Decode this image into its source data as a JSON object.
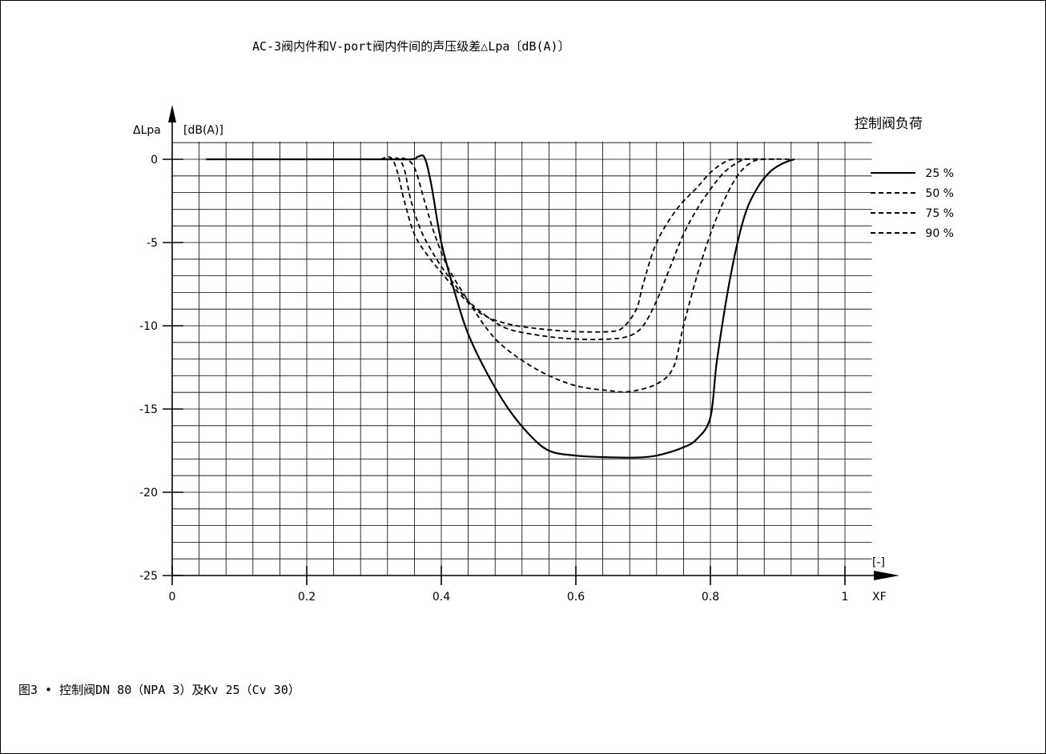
{
  "chart_data": {
    "type": "line",
    "title": "AC-3阀内件和V-port阀内件间的声压级差△Lpa〔dB(A)〕",
    "caption": "图3 • 控制阀DN 80（NPA 3）及Kv 25（Cv 30）",
    "ylabel": "ΔLpa",
    "yunit": "[dB(A)]",
    "xunit": "[-]",
    "xlabel": "XF",
    "xlim": [
      0,
      1
    ],
    "ylim": [
      -25,
      0
    ],
    "x_ticks": [
      "0",
      "0.2",
      "0.4",
      "0.6",
      "0.8",
      "1"
    ],
    "y_ticks": [
      "0",
      "-5",
      "-10",
      "-15",
      "-20",
      "-25"
    ],
    "grid": true,
    "legend_title": "控制阀负荷",
    "legend_position": "top-right",
    "series": [
      {
        "name": "25 %",
        "style": "solid",
        "points": [
          [
            0.05,
            0
          ],
          [
            0.3,
            0
          ],
          [
            0.355,
            0
          ],
          [
            0.365,
            0.15
          ],
          [
            0.375,
            0.1
          ],
          [
            0.385,
            -1.5
          ],
          [
            0.4,
            -5.0
          ],
          [
            0.42,
            -8.0
          ],
          [
            0.44,
            -10.5
          ],
          [
            0.47,
            -13
          ],
          [
            0.5,
            -15
          ],
          [
            0.53,
            -16.5
          ],
          [
            0.56,
            -17.5
          ],
          [
            0.6,
            -17.8
          ],
          [
            0.65,
            -17.9
          ],
          [
            0.7,
            -17.9
          ],
          [
            0.73,
            -17.7
          ],
          [
            0.76,
            -17.3
          ],
          [
            0.78,
            -16.8
          ],
          [
            0.8,
            -15.5
          ],
          [
            0.81,
            -12
          ],
          [
            0.83,
            -7
          ],
          [
            0.85,
            -3.5
          ],
          [
            0.87,
            -1.7
          ],
          [
            0.89,
            -0.7
          ],
          [
            0.91,
            -0.2
          ],
          [
            0.925,
            0
          ]
        ]
      },
      {
        "name": "50 %",
        "style": "dashed",
        "points": [
          [
            0.33,
            0
          ],
          [
            0.345,
            0.05
          ],
          [
            0.36,
            -0.5
          ],
          [
            0.375,
            -2.5
          ],
          [
            0.39,
            -4.5
          ],
          [
            0.41,
            -6.5
          ],
          [
            0.44,
            -8.5
          ],
          [
            0.47,
            -10.3
          ],
          [
            0.5,
            -11.5
          ],
          [
            0.55,
            -12.8
          ],
          [
            0.6,
            -13.6
          ],
          [
            0.65,
            -13.9
          ],
          [
            0.68,
            -13.95
          ],
          [
            0.72,
            -13.5
          ],
          [
            0.745,
            -12.5
          ],
          [
            0.76,
            -10
          ],
          [
            0.78,
            -7
          ],
          [
            0.8,
            -4.5
          ],
          [
            0.82,
            -2.5
          ],
          [
            0.84,
            -1
          ],
          [
            0.86,
            -0.2
          ],
          [
            0.88,
            0
          ],
          [
            0.92,
            0
          ]
        ]
      },
      {
        "name": "75 %",
        "style": "dashed",
        "points": [
          [
            0.32,
            0
          ],
          [
            0.335,
            0.05
          ],
          [
            0.345,
            -0.6
          ],
          [
            0.355,
            -2.5
          ],
          [
            0.37,
            -4.3
          ],
          [
            0.39,
            -5.8
          ],
          [
            0.41,
            -7
          ],
          [
            0.44,
            -8.5
          ],
          [
            0.47,
            -9.5
          ],
          [
            0.5,
            -10.2
          ],
          [
            0.55,
            -10.6
          ],
          [
            0.6,
            -10.8
          ],
          [
            0.65,
            -10.8
          ],
          [
            0.68,
            -10.6
          ],
          [
            0.7,
            -10
          ],
          [
            0.72,
            -8.5
          ],
          [
            0.74,
            -6.5
          ],
          [
            0.76,
            -4.5
          ],
          [
            0.78,
            -3
          ],
          [
            0.8,
            -1.8
          ],
          [
            0.82,
            -0.8
          ],
          [
            0.84,
            -0.2
          ],
          [
            0.855,
            0
          ],
          [
            0.9,
            0
          ]
        ]
      },
      {
        "name": "90 %",
        "style": "dashed",
        "points": [
          [
            0.31,
            0
          ],
          [
            0.325,
            0.1
          ],
          [
            0.335,
            -0.8
          ],
          [
            0.345,
            -2.5
          ],
          [
            0.36,
            -4.5
          ],
          [
            0.38,
            -5.8
          ],
          [
            0.4,
            -6.8
          ],
          [
            0.43,
            -8.2
          ],
          [
            0.46,
            -9.3
          ],
          [
            0.5,
            -9.9
          ],
          [
            0.55,
            -10.2
          ],
          [
            0.6,
            -10.35
          ],
          [
            0.65,
            -10.35
          ],
          [
            0.67,
            -10.1
          ],
          [
            0.69,
            -9
          ],
          [
            0.7,
            -7.5
          ],
          [
            0.72,
            -5
          ],
          [
            0.75,
            -3
          ],
          [
            0.78,
            -1.7
          ],
          [
            0.8,
            -0.8
          ],
          [
            0.82,
            -0.2
          ],
          [
            0.835,
            0
          ],
          [
            0.88,
            0
          ]
        ]
      }
    ]
  }
}
